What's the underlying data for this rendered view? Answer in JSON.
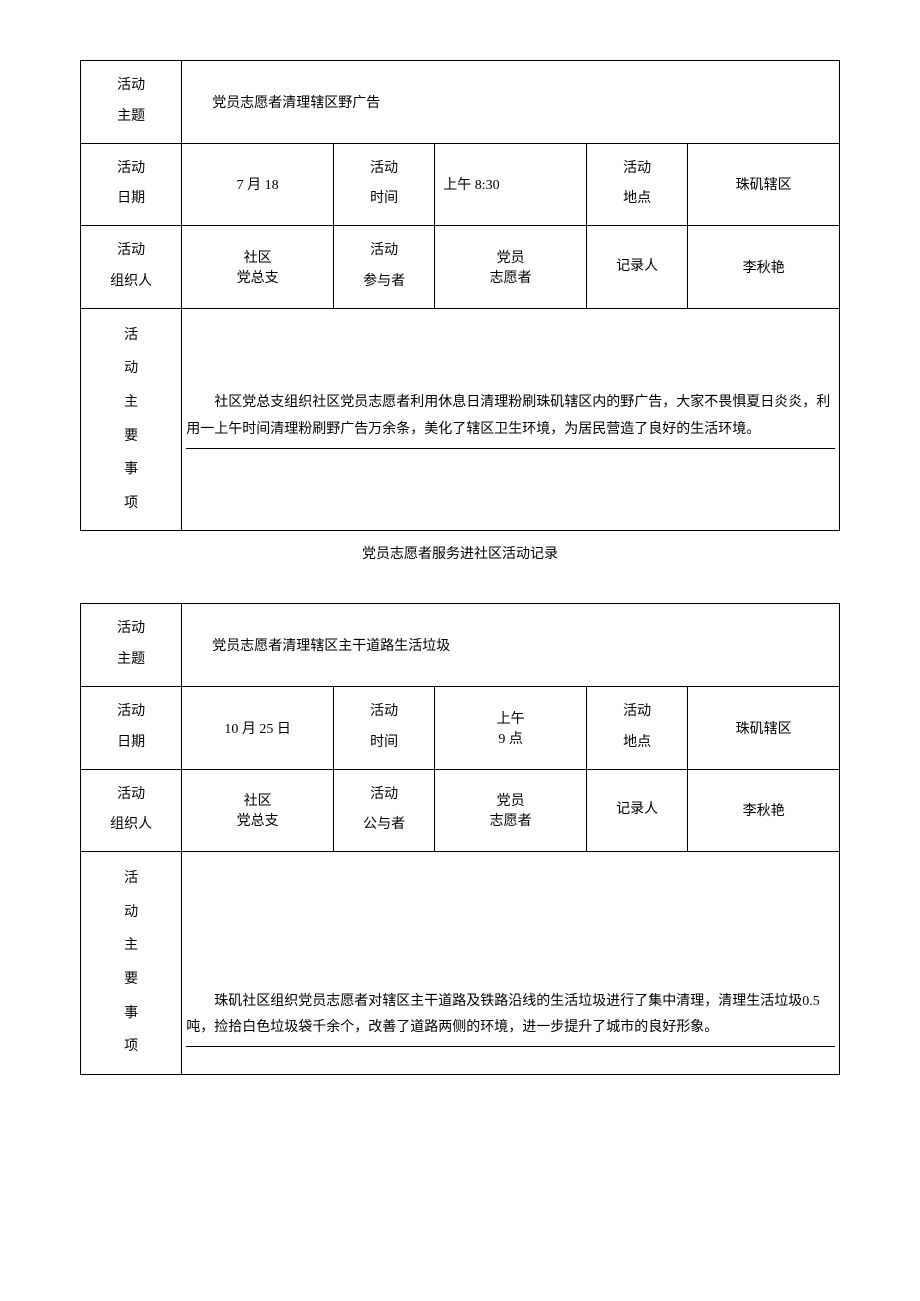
{
  "labels": {
    "theme": "活动\n主题",
    "date": "活动\n日期",
    "time": "活动\n时间",
    "place": "活动\n地点",
    "organizer": "活动\n组织人",
    "participants_1": "活动\n参与者",
    "participants_2": "活动\n公与者",
    "recorder": "记录人",
    "mainItems": "活\n动\n主\n要\n事\n项"
  },
  "record1": {
    "theme": "党员志愿者清理辖区野广告",
    "date": "7 月 18",
    "time": "上午 8:30",
    "place": "珠矶辖区",
    "organizer": "社区\n党总支",
    "participants": "党员\n志愿者",
    "recorder": "李秋艳",
    "content": "社区党总支组织社区党员志愿者利用休息日清理粉刷珠矶辖区内的野广告，大家不畏惧夏日炎炎，利用一上午时间清理粉刷野广告万余条，美化了辖区卫生环境，为居民营造了良好的生活环境。"
  },
  "sectionTitle": "党员志愿者服务进社区活动记录",
  "record2": {
    "theme": "党员志愿者清理辖区主干道路生活垃圾",
    "date": "10 月 25 日",
    "time": "上午\n9 点",
    "place": "珠矶辖区",
    "organizer": "社区\n党总支",
    "participants": "党员\n志愿者",
    "recorder": "李秋艳",
    "content": "珠矶社区组织党员志愿者对辖区主干道路及铁路沿线的生活垃圾进行了集中清理，清理生活垃圾0.5 吨，捡拾白色垃圾袋千余个，改善了道路两侧的环境，进一步提升了城市的良好形象。"
  }
}
